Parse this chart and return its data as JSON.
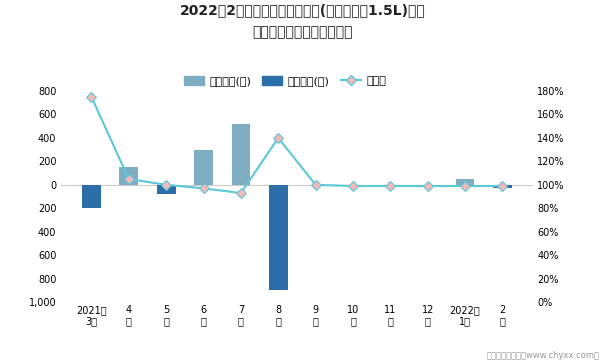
{
  "title_line1": "2022年2月波罗旗下最畅销轿车(新波罗两厢1.5L)近一",
  "title_line2": "年库存情况及产销率统计图",
  "x_labels": [
    "2021年\n3月",
    "4\n月",
    "5\n月",
    "6\n月",
    "7\n月",
    "8\n月",
    "9\n月",
    "10\n月",
    "11\n月",
    "12\n月",
    "2022年\n1月",
    "2\n月"
  ],
  "jiaya_values": [
    0,
    150,
    0,
    300,
    520,
    0,
    0,
    0,
    0,
    0,
    50,
    0
  ],
  "qingcang_values": [
    -200,
    0,
    -80,
    0,
    0,
    -900,
    0,
    0,
    0,
    0,
    0,
    -30
  ],
  "chanxiao_values": [
    1.75,
    1.05,
    1.0,
    0.97,
    0.93,
    1.4,
    1.0,
    0.99,
    0.99,
    0.99,
    0.99,
    0.99
  ],
  "jiaya_color": "#7fadc2",
  "qingcang_color": "#2b6ea8",
  "chanxiao_line_color": "#5bc8d8",
  "chanxiao_marker_color": "#f4b8b8",
  "ylim_left": [
    -1000,
    800
  ],
  "ylim_right": [
    0.0,
    1.8
  ],
  "yticks_left": [
    -1000,
    -800,
    -600,
    -400,
    -200,
    0,
    200,
    400,
    600,
    800
  ],
  "yticks_right": [
    0.0,
    0.2,
    0.4,
    0.6,
    0.8,
    1.0,
    1.2,
    1.4,
    1.6,
    1.8
  ],
  "legend_jiaya": "积压库存(辆)",
  "legend_qingcang": "清仓库存(辆)",
  "legend_chanxiao": "产销率",
  "footnote": "制图：智研咨询（www.chyxx.com）",
  "bg_color": "#ffffff"
}
